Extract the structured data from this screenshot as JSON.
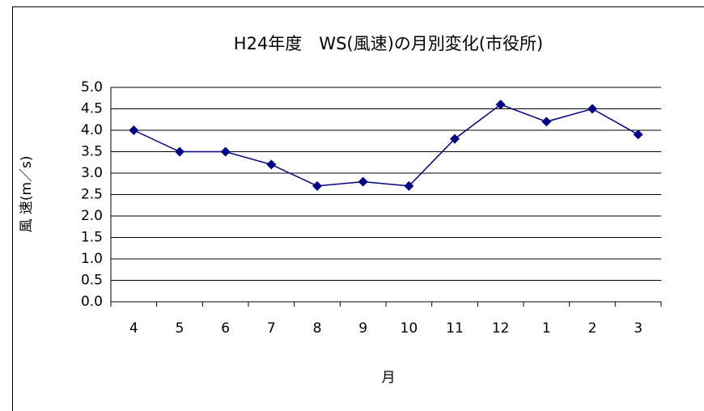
{
  "chart_data": {
    "type": "line",
    "title": "H24年度　WS(風速)の月別変化(市役所)",
    "y_label": "風 速(m／s)",
    "x_label": "月",
    "categories": [
      "4",
      "5",
      "6",
      "7",
      "8",
      "9",
      "10",
      "11",
      "12",
      "1",
      "2",
      "3"
    ],
    "series": [
      {
        "name": "WS",
        "color": "#000080",
        "values": [
          4.0,
          3.5,
          3.5,
          3.2,
          2.7,
          2.8,
          2.7,
          3.8,
          4.6,
          4.2,
          4.5,
          3.9
        ]
      }
    ],
    "ylim": [
      0,
      5
    ],
    "yticks": [
      {
        "value": 0,
        "label": "0.0"
      },
      0.5,
      {
        "value": 1,
        "label": "1.0"
      },
      1.5,
      {
        "value": 2,
        "label": "2.0"
      },
      2.5,
      {
        "value": 3,
        "label": "3.0"
      },
      3.5,
      {
        "value": 4,
        "label": "4.0"
      },
      4.5,
      {
        "value": 5,
        "label": "5.0"
      }
    ],
    "grid": true
  }
}
